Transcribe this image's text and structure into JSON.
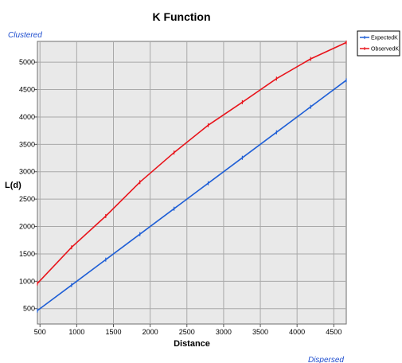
{
  "chart_data": {
    "type": "line",
    "title": "K Function",
    "xlabel": "Distance",
    "ylabel": "L(d)",
    "xlim": [
      465,
      4670
    ],
    "ylim": [
      220,
      5380
    ],
    "x_ticks": [
      500,
      1000,
      1500,
      2000,
      2500,
      3000,
      3500,
      4000,
      4500
    ],
    "y_ticks": [
      500,
      1000,
      1500,
      2000,
      2500,
      3000,
      3500,
      4000,
      4500,
      5000
    ],
    "grid": true,
    "legend_position": "top-right",
    "annotations": {
      "top_left": "Clustered",
      "bottom_right": "Dispersed"
    },
    "series": [
      {
        "name": "ExpectedK",
        "color": "#1f5fd6",
        "x": [
          465,
          930,
          1395,
          1860,
          2325,
          2790,
          3255,
          3720,
          4185,
          4670
        ],
        "y": [
          465,
          930,
          1395,
          1860,
          2325,
          2790,
          3255,
          3720,
          4185,
          4670
        ]
      },
      {
        "name": "ObservedK",
        "color": "#e8141b",
        "x": [
          465,
          930,
          1395,
          1860,
          2325,
          2790,
          3255,
          3720,
          4185,
          4670
        ],
        "y": [
          960,
          1620,
          2190,
          2810,
          3350,
          3850,
          4270,
          4700,
          5060,
          5360
        ]
      }
    ]
  }
}
